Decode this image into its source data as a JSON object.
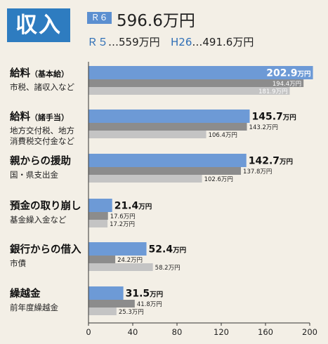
{
  "header": {
    "title": "収入",
    "r6_badge": "Ｒ６",
    "r6_value": "596.6万円",
    "r5_label": "Ｒ５",
    "r5_value": "…559万円",
    "h26_label": "H26",
    "h26_value": "…491.6万円"
  },
  "colors": {
    "r6": "#6d9ad6",
    "r5": "#8c8c8c",
    "h26": "#c4c4c4",
    "accent": "#2e7cc0"
  },
  "chart_data": {
    "type": "bar",
    "orientation": "horizontal",
    "unit": "万円",
    "xlim": [
      0,
      200
    ],
    "xticks": [
      "0",
      "40",
      "80",
      "120",
      "160",
      "200"
    ],
    "categories": [
      {
        "title": "給料",
        "note": "（基本給）",
        "sub": [
          "市税、諸収入など"
        ]
      },
      {
        "title": "給料",
        "note": "（諸手当）",
        "sub": [
          "地方交付税、地方",
          "消費税交付金など"
        ]
      },
      {
        "title": "親からの援助",
        "note": "",
        "sub": [
          "国・県支出金"
        ]
      },
      {
        "title": "預金の取り崩し",
        "note": "",
        "sub": [
          "基金繰入金など"
        ]
      },
      {
        "title": "銀行からの借入",
        "note": "",
        "sub": [
          "市債"
        ]
      },
      {
        "title": "繰越金",
        "note": "",
        "sub": [
          "前年度繰越金"
        ]
      }
    ],
    "series": [
      {
        "name": "Ｒ６",
        "values": [
          202.9,
          145.7,
          142.7,
          21.4,
          52.4,
          31.5
        ],
        "labels": [
          "202.9",
          "145.7",
          "142.7",
          "21.4",
          "52.4",
          "31.5"
        ]
      },
      {
        "name": "Ｒ５",
        "values": [
          194.4,
          143.2,
          137.8,
          17.6,
          24.2,
          41.8
        ],
        "labels": [
          "194.4",
          "143.2",
          "137.8",
          "17.6",
          "24.2",
          "41.8"
        ]
      },
      {
        "name": "H26",
        "values": [
          181.9,
          106.4,
          102.6,
          17.2,
          58.2,
          25.3
        ],
        "labels": [
          "181.9",
          "106.4",
          "102.6",
          "17.2",
          "58.2",
          "25.3"
        ]
      }
    ]
  }
}
